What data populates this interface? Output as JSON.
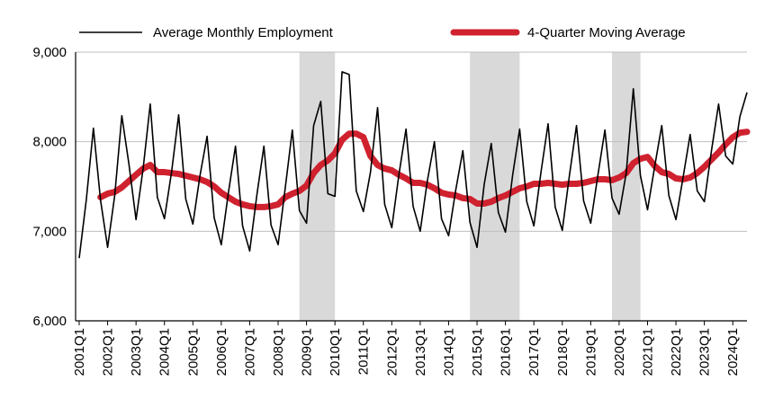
{
  "chart_data": {
    "type": "line",
    "title": "",
    "xlabel": "",
    "ylabel": "",
    "ylim": [
      6000,
      9000
    ],
    "yticks": [
      6000,
      7000,
      8000,
      9000
    ],
    "ytick_labels": [
      "6,000",
      "7,000",
      "8,000",
      "9,000"
    ],
    "grid": "horizontal",
    "legend_position": "top",
    "colors": {
      "monthly": "#000000",
      "moving_avg": "#d0212f",
      "recession_shade": "#d9d9d9",
      "grid": "#bfbfbf"
    },
    "xtick_labels": [
      "2001Q1",
      "2002Q1",
      "2003Q1",
      "2004Q1",
      "2005Q1",
      "2006Q1",
      "2007Q1",
      "2008Q1",
      "2009Q1",
      "2010Q1",
      "2011Q1",
      "2012Q1",
      "2013Q1",
      "2014Q1",
      "2015Q1",
      "2016Q1",
      "2017Q1",
      "2018Q1",
      "2019Q1",
      "2020Q1",
      "2021Q1",
      "2022Q1",
      "2023Q1",
      "2024Q1"
    ],
    "x_start_quarter": "2001Q1",
    "shaded_periods": [
      {
        "start": "2008Q4",
        "end": "2010Q1"
      },
      {
        "start": "2014Q4",
        "end": "2016Q3"
      },
      {
        "start": "2019Q4",
        "end": "2020Q4"
      }
    ],
    "series": [
      {
        "name": "Average Monthly Employment",
        "values": [
          6700,
          7350,
          8150,
          7350,
          6820,
          7400,
          8290,
          7750,
          7130,
          7700,
          8420,
          7380,
          7140,
          7660,
          8300,
          7360,
          7080,
          7620,
          8060,
          7150,
          6850,
          7430,
          7950,
          7060,
          6780,
          7400,
          7950,
          7070,
          6850,
          7480,
          8130,
          7230,
          7090,
          8180,
          8450,
          7420,
          7390,
          8780,
          8750,
          7450,
          7220,
          7660,
          8380,
          7300,
          7040,
          7630,
          8140,
          7280,
          7000,
          7560,
          8000,
          7140,
          6950,
          7460,
          7900,
          7100,
          6820,
          7520,
          7980,
          7210,
          6990,
          7620,
          8140,
          7330,
          7060,
          7660,
          8200,
          7270,
          7010,
          7620,
          8180,
          7340,
          7090,
          7620,
          8130,
          7370,
          7190,
          7650,
          8590,
          7620,
          7240,
          7720,
          8180,
          7400,
          7130,
          7600,
          8080,
          7450,
          7330,
          7900,
          8420,
          7840,
          7750,
          8280,
          8550
        ]
      },
      {
        "name": "4-Quarter Moving Average",
        "values": [
          null,
          null,
          null,
          7380,
          7420,
          7440,
          7490,
          7560,
          7630,
          7700,
          7740,
          7660,
          7660,
          7650,
          7640,
          7620,
          7600,
          7580,
          7550,
          7500,
          7430,
          7380,
          7330,
          7300,
          7280,
          7270,
          7270,
          7280,
          7300,
          7380,
          7420,
          7450,
          7510,
          7650,
          7740,
          7790,
          7870,
          8020,
          8090,
          8090,
          8050,
          7840,
          7740,
          7700,
          7680,
          7630,
          7590,
          7540,
          7540,
          7520,
          7480,
          7430,
          7410,
          7400,
          7370,
          7360,
          7310,
          7310,
          7330,
          7370,
          7400,
          7440,
          7480,
          7500,
          7530,
          7530,
          7540,
          7530,
          7520,
          7530,
          7530,
          7540,
          7560,
          7580,
          7580,
          7570,
          7600,
          7650,
          7760,
          7810,
          7830,
          7730,
          7660,
          7640,
          7590,
          7580,
          7600,
          7650,
          7720,
          7800,
          7880,
          7970,
          8050,
          8100,
          8110
        ]
      }
    ]
  }
}
